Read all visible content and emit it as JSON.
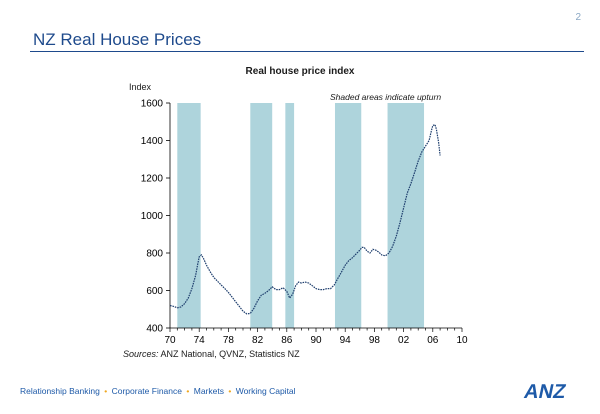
{
  "page_number": "2",
  "slide_title": "NZ Real House Prices",
  "sources": {
    "label": "Sources:",
    "text": "ANZ National, QVNZ, Statistics NZ"
  },
  "footer": [
    "Relationship Banking",
    "Corporate Finance",
    "Markets",
    "Working Capital"
  ],
  "footer_separator": "•",
  "logo_text": "ANZ",
  "colors": {
    "line": "#1f3f6e",
    "shade": "#aed4dc",
    "title": "#1e4a8c",
    "footer": "#1e5aa8",
    "separator": "#f0a820"
  },
  "chart_data": {
    "type": "line",
    "title": "Real house price index",
    "ylabel": "Index",
    "xlabel": "",
    "annotation": "Shaded areas indicate upturn",
    "ylim": [
      400,
      1600
    ],
    "xlim": [
      1970,
      2010
    ],
    "yticks": [
      400,
      600,
      800,
      1000,
      1200,
      1400,
      1600
    ],
    "xticks": [
      {
        "x": 1970,
        "label": "70"
      },
      {
        "x": 1974,
        "label": "74"
      },
      {
        "x": 1978,
        "label": "78"
      },
      {
        "x": 1982,
        "label": "82"
      },
      {
        "x": 1986,
        "label": "86"
      },
      {
        "x": 1990,
        "label": "90"
      },
      {
        "x": 1994,
        "label": "94"
      },
      {
        "x": 1998,
        "label": "98"
      },
      {
        "x": 2002,
        "label": "02"
      },
      {
        "x": 2006,
        "label": "06"
      },
      {
        "x": 2010,
        "label": "10"
      }
    ],
    "shaded": [
      [
        1971.0,
        1974.2
      ],
      [
        1981.0,
        1984.0
      ],
      [
        1985.8,
        1987.0
      ],
      [
        1992.6,
        1996.2
      ],
      [
        1999.8,
        2004.8
      ]
    ],
    "grid": false,
    "series": [
      {
        "values": [
          [
            1970.0,
            520
          ],
          [
            1970.5,
            515
          ],
          [
            1971.0,
            508
          ],
          [
            1971.5,
            512
          ],
          [
            1972.0,
            530
          ],
          [
            1972.5,
            560
          ],
          [
            1973.0,
            610
          ],
          [
            1973.5,
            680
          ],
          [
            1973.8,
            740
          ],
          [
            1974.0,
            780
          ],
          [
            1974.3,
            790
          ],
          [
            1974.6,
            770
          ],
          [
            1975.0,
            735
          ],
          [
            1975.5,
            700
          ],
          [
            1976.0,
            670
          ],
          [
            1976.5,
            650
          ],
          [
            1977.0,
            630
          ],
          [
            1977.5,
            610
          ],
          [
            1978.0,
            590
          ],
          [
            1978.5,
            565
          ],
          [
            1979.0,
            540
          ],
          [
            1979.5,
            515
          ],
          [
            1980.0,
            490
          ],
          [
            1980.5,
            475
          ],
          [
            1981.0,
            478
          ],
          [
            1981.5,
            505
          ],
          [
            1982.0,
            545
          ],
          [
            1982.5,
            575
          ],
          [
            1983.0,
            585
          ],
          [
            1983.5,
            600
          ],
          [
            1984.0,
            620
          ],
          [
            1984.5,
            605
          ],
          [
            1985.0,
            605
          ],
          [
            1985.5,
            615
          ],
          [
            1986.0,
            595
          ],
          [
            1986.4,
            560
          ],
          [
            1986.8,
            580
          ],
          [
            1987.2,
            625
          ],
          [
            1987.6,
            645
          ],
          [
            1988.0,
            640
          ],
          [
            1988.5,
            645
          ],
          [
            1989.0,
            640
          ],
          [
            1989.5,
            625
          ],
          [
            1990.0,
            610
          ],
          [
            1990.5,
            605
          ],
          [
            1991.0,
            605
          ],
          [
            1991.5,
            610
          ],
          [
            1992.0,
            610
          ],
          [
            1992.5,
            630
          ],
          [
            1993.0,
            665
          ],
          [
            1993.5,
            700
          ],
          [
            1994.0,
            735
          ],
          [
            1994.5,
            760
          ],
          [
            1995.0,
            775
          ],
          [
            1995.5,
            795
          ],
          [
            1996.0,
            815
          ],
          [
            1996.3,
            830
          ],
          [
            1996.6,
            830
          ],
          [
            1997.0,
            810
          ],
          [
            1997.4,
            800
          ],
          [
            1997.8,
            820
          ],
          [
            1998.2,
            815
          ],
          [
            1998.6,
            805
          ],
          [
            1999.0,
            790
          ],
          [
            1999.5,
            785
          ],
          [
            2000.0,
            800
          ],
          [
            2000.5,
            835
          ],
          [
            2001.0,
            890
          ],
          [
            2001.5,
            960
          ],
          [
            2002.0,
            1040
          ],
          [
            2002.5,
            1120
          ],
          [
            2003.0,
            1170
          ],
          [
            2003.5,
            1230
          ],
          [
            2004.0,
            1290
          ],
          [
            2004.5,
            1340
          ],
          [
            2005.0,
            1370
          ],
          [
            2005.5,
            1400
          ],
          [
            2005.8,
            1450
          ],
          [
            2006.0,
            1480
          ],
          [
            2006.3,
            1485
          ],
          [
            2006.5,
            1460
          ],
          [
            2006.8,
            1390
          ],
          [
            2007.0,
            1320
          ]
        ]
      }
    ]
  }
}
